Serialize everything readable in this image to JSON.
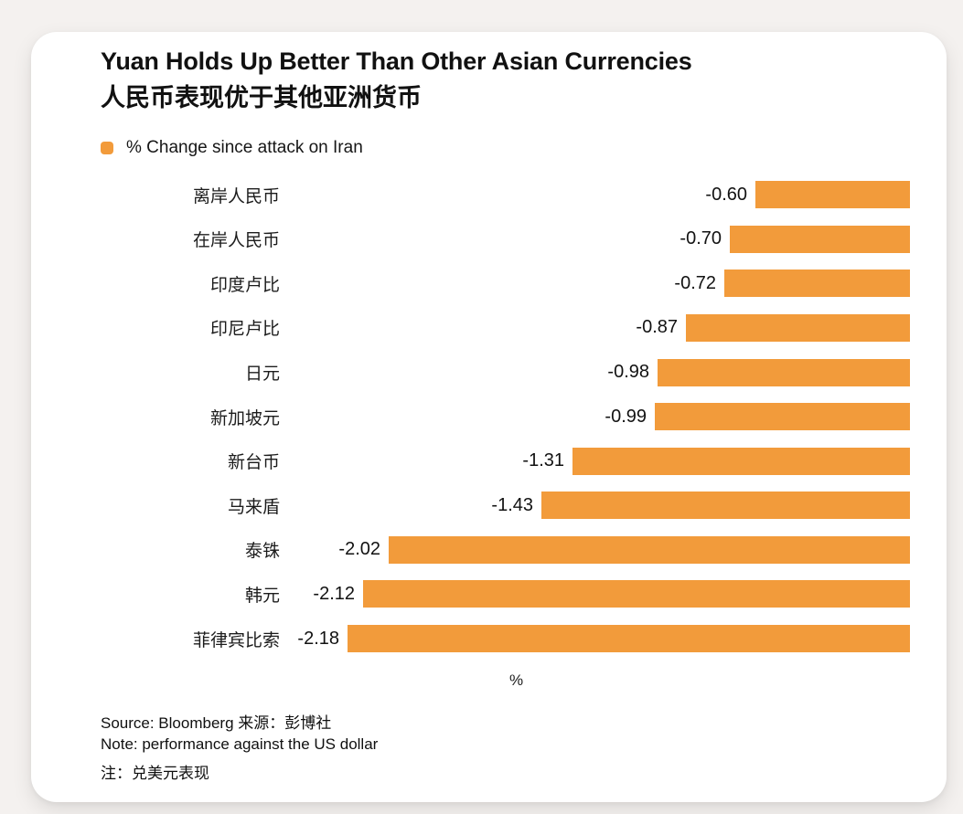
{
  "title": "Yuan Holds Up Better Than Other Asian Currencies",
  "subtitle_zh": "人民币表现优于其他亚洲货币",
  "legend": {
    "label": "% Change since attack on Iran",
    "color": "#F29B3B"
  },
  "chart_data": {
    "type": "bar",
    "orientation": "horizontal",
    "title": "Yuan Holds Up Better Than Other Asian Currencies",
    "subtitle": "人民币表现优于其他亚洲货币",
    "series_name": "% Change since attack on Iran",
    "categories": [
      "离岸人民币",
      "在岸人民币",
      "印度卢比",
      "印尼卢比",
      "日元",
      "新加坡元",
      "新台币",
      "马来盾",
      "泰铢",
      "韩元",
      "菲律宾比索"
    ],
    "values": [
      -0.6,
      -0.7,
      -0.72,
      -0.87,
      -0.98,
      -0.99,
      -1.31,
      -1.43,
      -2.02,
      -2.12,
      -2.18
    ],
    "value_labels": [
      "-0.60",
      "-0.70",
      "-0.72",
      "-0.87",
      "-0.98",
      "-0.99",
      "-1.31",
      "-1.43",
      "-2.02",
      "-2.12",
      "-2.18"
    ],
    "xlabel": "%",
    "xlim": [
      -2.45,
      0
    ],
    "bar_color": "#F29B3B",
    "grid": false,
    "legend_position": "top-left",
    "baseline": "zero at right edge, bars extend left for negative values",
    "value_label_position": "left of bar start"
  },
  "footer": {
    "source": "Source: Bloomberg  来源：彭博社",
    "note": "Note: performance against the US dollar",
    "note_zh": "注：兑美元表现"
  }
}
